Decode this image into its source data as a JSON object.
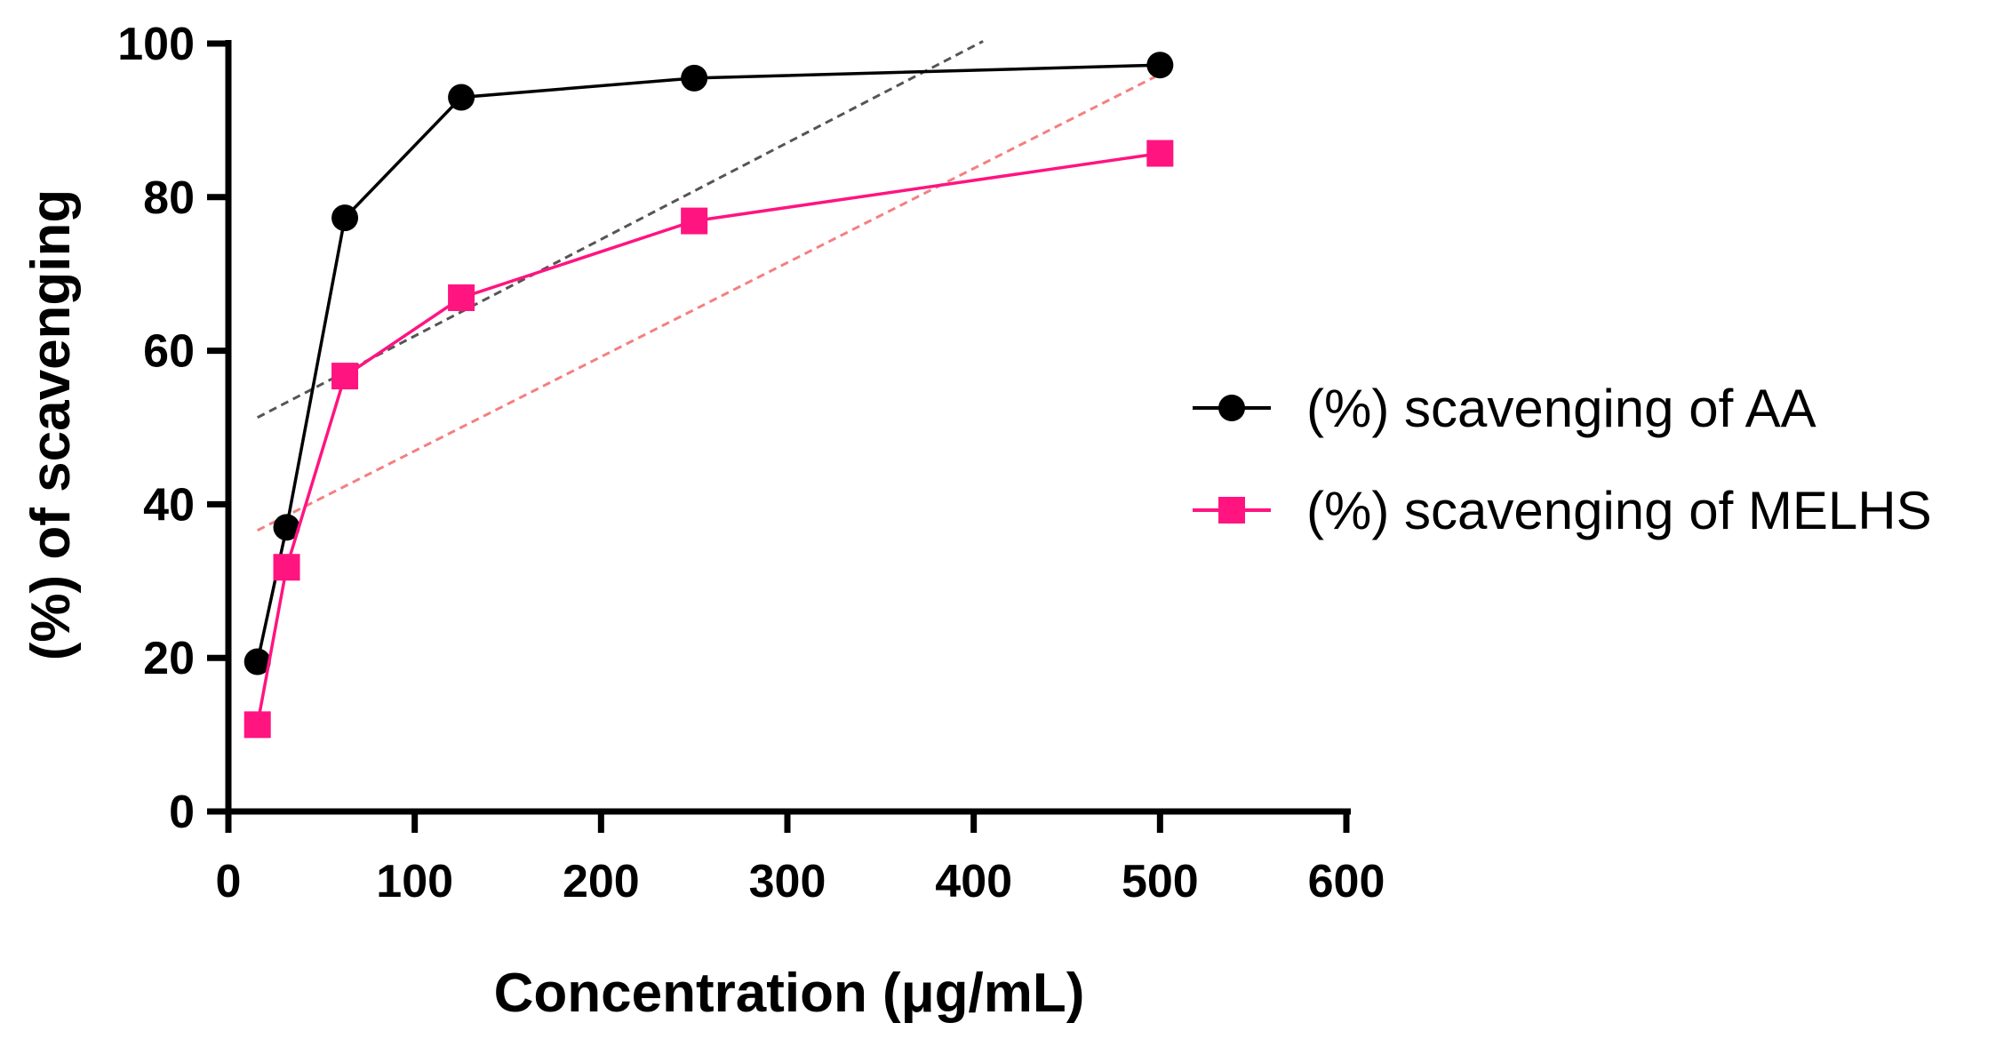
{
  "chart_data": {
    "type": "line",
    "title": "",
    "xlabel": "Concentration (μg/mL)",
    "ylabel": "(%) of scavenging",
    "xlim": [
      0,
      600
    ],
    "ylim": [
      0,
      100
    ],
    "xticks": [
      0,
      100,
      200,
      300,
      400,
      500,
      600
    ],
    "yticks": [
      0,
      20,
      40,
      60,
      80,
      100
    ],
    "x": [
      15.6,
      31.25,
      62.5,
      125,
      250,
      500
    ],
    "series": [
      {
        "name": "(%) scavenging of AA",
        "marker": "circle",
        "color": "#000000",
        "values": [
          19.5,
          37.0,
          77.3,
          93.0,
          95.5,
          97.2
        ]
      },
      {
        "name": "(%) scavenging of MELHS",
        "marker": "square",
        "color": "#ff1480",
        "values": [
          11.3,
          31.8,
          56.7,
          66.9,
          76.9,
          85.7
        ]
      }
    ],
    "trendlines": [
      {
        "series": "(%) scavenging of AA",
        "color": "#555555",
        "x": [
          15.6,
          405
        ],
        "y": [
          51.3,
          100.3
        ]
      },
      {
        "series": "(%) scavenging of MELHS",
        "color": "#f48080",
        "x": [
          15.6,
          500
        ],
        "y": [
          36.6,
          96.0
        ]
      }
    ],
    "legend_position": "right"
  }
}
